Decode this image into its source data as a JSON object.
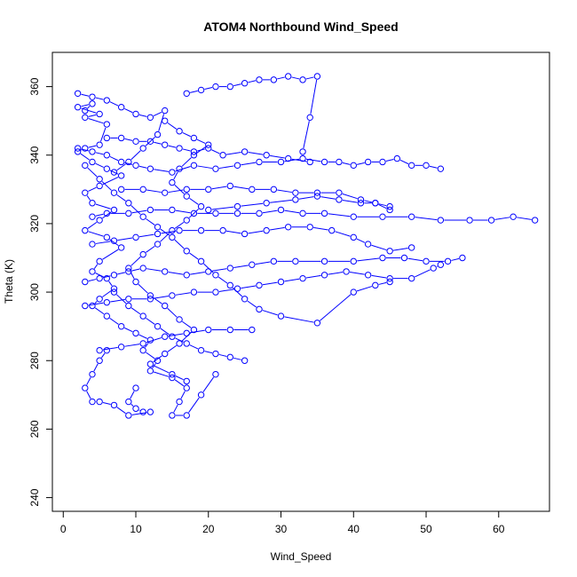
{
  "chart_data": {
    "type": "scatter",
    "title": "ATOM4 Northbound Wind_Speed",
    "xlabel": "Wind_Speed",
    "ylabel": "Theta (K)",
    "xlim": [
      -1.5,
      67
    ],
    "ylim": [
      236,
      370
    ],
    "xticks": [
      0,
      10,
      20,
      30,
      40,
      50,
      60
    ],
    "yticks": [
      240,
      260,
      280,
      300,
      320,
      340,
      360
    ],
    "grid": false,
    "legend": "none",
    "color": "#0000ff",
    "series": [
      {
        "points": [
          [
            3,
            353
          ],
          [
            4,
            355
          ],
          [
            2,
            354
          ],
          [
            5,
            352
          ],
          [
            3,
            351
          ],
          [
            6,
            349
          ],
          [
            5,
            343
          ],
          [
            3,
            342
          ],
          [
            2,
            341
          ],
          [
            4,
            338
          ],
          [
            6,
            336
          ],
          [
            8,
            334
          ],
          [
            5,
            331
          ],
          [
            3,
            329
          ],
          [
            4,
            326
          ],
          [
            7,
            324
          ],
          [
            5,
            321
          ],
          [
            3,
            318
          ],
          [
            6,
            316
          ],
          [
            8,
            313
          ],
          [
            5,
            309
          ],
          [
            4,
            306
          ],
          [
            6,
            304
          ],
          [
            7,
            301
          ],
          [
            5,
            298
          ],
          [
            4,
            296
          ],
          [
            6,
            293
          ],
          [
            8,
            290
          ],
          [
            10,
            288
          ],
          [
            12,
            286
          ],
          [
            11,
            283
          ],
          [
            13,
            280
          ],
          [
            12,
            277
          ],
          [
            15,
            275
          ],
          [
            17,
            272
          ],
          [
            16,
            268
          ],
          [
            15,
            264
          ],
          [
            17,
            264
          ],
          [
            19,
            270
          ],
          [
            21,
            276
          ]
        ]
      },
      {
        "points": [
          [
            2,
            342
          ],
          [
            4,
            341
          ],
          [
            6,
            340
          ],
          [
            8,
            338
          ],
          [
            10,
            337
          ],
          [
            12,
            336
          ],
          [
            15,
            335
          ],
          [
            18,
            337
          ],
          [
            21,
            336
          ],
          [
            24,
            337
          ],
          [
            27,
            338
          ],
          [
            30,
            338
          ],
          [
            33,
            339
          ],
          [
            36,
            338
          ],
          [
            38,
            338
          ],
          [
            40,
            337
          ],
          [
            42,
            338
          ],
          [
            44,
            338
          ],
          [
            46,
            339
          ],
          [
            48,
            337
          ],
          [
            50,
            337
          ],
          [
            52,
            336
          ]
        ]
      },
      {
        "points": [
          [
            17,
            358
          ],
          [
            19,
            359
          ],
          [
            21,
            360
          ],
          [
            23,
            360
          ],
          [
            25,
            361
          ],
          [
            27,
            362
          ],
          [
            29,
            362
          ],
          [
            31,
            363
          ],
          [
            33,
            362
          ],
          [
            35,
            363
          ],
          [
            34,
            351
          ],
          [
            33,
            341
          ]
        ]
      },
      {
        "points": [
          [
            4,
            322
          ],
          [
            6,
            323
          ],
          [
            9,
            323
          ],
          [
            12,
            324
          ],
          [
            15,
            324
          ],
          [
            18,
            323
          ],
          [
            21,
            323
          ],
          [
            24,
            323
          ],
          [
            27,
            323
          ],
          [
            30,
            324
          ],
          [
            33,
            323
          ],
          [
            36,
            323
          ],
          [
            40,
            322
          ],
          [
            44,
            322
          ],
          [
            48,
            322
          ],
          [
            52,
            321
          ],
          [
            56,
            321
          ],
          [
            59,
            321
          ],
          [
            62,
            322
          ],
          [
            65,
            321
          ]
        ]
      },
      {
        "points": [
          [
            3,
            303
          ],
          [
            5,
            304
          ],
          [
            7,
            305
          ],
          [
            9,
            306
          ],
          [
            11,
            307
          ],
          [
            14,
            306
          ],
          [
            17,
            305
          ],
          [
            20,
            306
          ],
          [
            23,
            307
          ],
          [
            26,
            308
          ],
          [
            29,
            309
          ],
          [
            32,
            309
          ],
          [
            36,
            309
          ],
          [
            40,
            309
          ],
          [
            44,
            310
          ],
          [
            47,
            310
          ],
          [
            50,
            309
          ],
          [
            53,
            309
          ],
          [
            55,
            310
          ]
        ]
      },
      {
        "points": [
          [
            6,
            345
          ],
          [
            8,
            345
          ],
          [
            10,
            344
          ],
          [
            12,
            344
          ],
          [
            14,
            343
          ],
          [
            16,
            342
          ],
          [
            18,
            341
          ],
          [
            20,
            342
          ],
          [
            22,
            340
          ],
          [
            25,
            341
          ],
          [
            28,
            340
          ],
          [
            31,
            339
          ],
          [
            34,
            338
          ]
        ]
      },
      {
        "points": [
          [
            8,
            330
          ],
          [
            11,
            330
          ],
          [
            14,
            329
          ],
          [
            17,
            330
          ],
          [
            20,
            330
          ],
          [
            23,
            331
          ],
          [
            26,
            330
          ],
          [
            29,
            330
          ],
          [
            32,
            329
          ],
          [
            35,
            329
          ],
          [
            38,
            329
          ],
          [
            41,
            327
          ],
          [
            43,
            326
          ],
          [
            45,
            325
          ]
        ]
      },
      {
        "points": [
          [
            5,
            283
          ],
          [
            8,
            284
          ],
          [
            11,
            285
          ],
          [
            14,
            287
          ],
          [
            17,
            288
          ],
          [
            20,
            289
          ],
          [
            23,
            289
          ],
          [
            26,
            289
          ]
        ]
      },
      {
        "points": [
          [
            4,
            314
          ],
          [
            7,
            315
          ],
          [
            10,
            316
          ],
          [
            13,
            317
          ],
          [
            16,
            318
          ],
          [
            19,
            318
          ],
          [
            22,
            318
          ],
          [
            25,
            317
          ],
          [
            28,
            318
          ],
          [
            31,
            319
          ],
          [
            34,
            319
          ],
          [
            37,
            318
          ],
          [
            40,
            316
          ],
          [
            42,
            314
          ],
          [
            45,
            312
          ],
          [
            48,
            313
          ]
        ]
      },
      {
        "points": [
          [
            3,
            296
          ],
          [
            6,
            297
          ],
          [
            9,
            298
          ],
          [
            12,
            298
          ],
          [
            15,
            299
          ],
          [
            18,
            300
          ],
          [
            21,
            300
          ],
          [
            24,
            301
          ],
          [
            27,
            302
          ],
          [
            30,
            303
          ],
          [
            33,
            304
          ],
          [
            36,
            305
          ],
          [
            39,
            306
          ],
          [
            42,
            305
          ],
          [
            45,
            304
          ],
          [
            48,
            304
          ],
          [
            51,
            307
          ],
          [
            52,
            308
          ]
        ]
      },
      {
        "points": [
          [
            10,
            272
          ],
          [
            9,
            268
          ],
          [
            10,
            266
          ],
          [
            11,
            265
          ],
          [
            12,
            265
          ],
          [
            9,
            264
          ],
          [
            7,
            267
          ],
          [
            5,
            268
          ],
          [
            4,
            268
          ],
          [
            3,
            272
          ],
          [
            4,
            276
          ],
          [
            5,
            280
          ],
          [
            6,
            283
          ]
        ]
      },
      {
        "points": [
          [
            2,
            358
          ],
          [
            4,
            357
          ],
          [
            6,
            356
          ],
          [
            8,
            354
          ],
          [
            10,
            352
          ],
          [
            12,
            351
          ],
          [
            14,
            353
          ],
          [
            13,
            346
          ],
          [
            11,
            342
          ],
          [
            9,
            338
          ],
          [
            7,
            335
          ]
        ]
      },
      {
        "points": [
          [
            14,
            350
          ],
          [
            16,
            347
          ],
          [
            18,
            345
          ],
          [
            20,
            343
          ],
          [
            18,
            340
          ],
          [
            16,
            336
          ],
          [
            15,
            332
          ],
          [
            17,
            328
          ],
          [
            19,
            325
          ],
          [
            17,
            321
          ],
          [
            15,
            318
          ],
          [
            13,
            314
          ],
          [
            11,
            311
          ],
          [
            9,
            307
          ],
          [
            10,
            303
          ],
          [
            12,
            299
          ],
          [
            14,
            296
          ],
          [
            16,
            292
          ],
          [
            18,
            289
          ],
          [
            16,
            285
          ],
          [
            14,
            282
          ],
          [
            12,
            279
          ],
          [
            15,
            276
          ],
          [
            17,
            274
          ]
        ]
      },
      {
        "points": [
          [
            3,
            337
          ],
          [
            5,
            333
          ],
          [
            7,
            329
          ],
          [
            9,
            326
          ],
          [
            11,
            322
          ],
          [
            13,
            319
          ],
          [
            15,
            316
          ],
          [
            17,
            312
          ],
          [
            19,
            309
          ],
          [
            21,
            305
          ],
          [
            23,
            302
          ],
          [
            25,
            298
          ],
          [
            27,
            295
          ],
          [
            30,
            293
          ],
          [
            35,
            291
          ],
          [
            40,
            300
          ],
          [
            43,
            302
          ],
          [
            45,
            303
          ]
        ]
      },
      {
        "points": [
          [
            20,
            324
          ],
          [
            24,
            325
          ],
          [
            28,
            326
          ],
          [
            32,
            327
          ],
          [
            35,
            328
          ],
          [
            38,
            327
          ],
          [
            41,
            326
          ],
          [
            43,
            326
          ],
          [
            45,
            324
          ]
        ]
      },
      {
        "points": [
          [
            7,
            300
          ],
          [
            9,
            296
          ],
          [
            11,
            293
          ],
          [
            13,
            290
          ],
          [
            15,
            287
          ],
          [
            17,
            285
          ],
          [
            19,
            283
          ],
          [
            21,
            282
          ],
          [
            23,
            281
          ],
          [
            25,
            280
          ]
        ]
      }
    ]
  }
}
